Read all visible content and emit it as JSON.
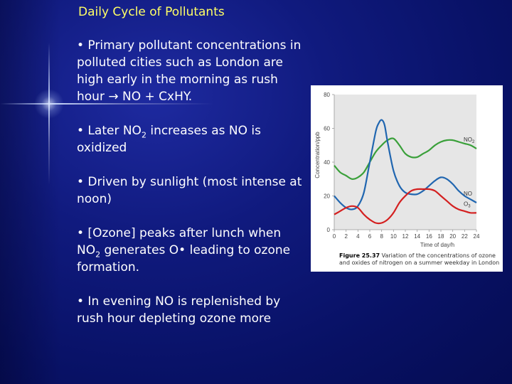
{
  "slide": {
    "title": "Daily Cycle of Pollutants",
    "bullets": [
      {
        "text": "• Primary pollutant concentrations in polluted cities such as London are high early in the morning as rush hour → NO + CxHY.",
        "sub": "",
        "after": ""
      },
      {
        "text": "• Later NO",
        "sub": "2",
        "after": " increases as NO is oxidized"
      },
      {
        "text": "• Driven by sunlight (most intense at noon)",
        "sub": "",
        "after": ""
      },
      {
        "text": "• [Ozone] peaks after lunch when NO",
        "sub": "2",
        "after": " generates O• leading to ozone formation."
      },
      {
        "text": "• In evening NO is replenished by rush hour depleting ozone more",
        "sub": "",
        "after": ""
      }
    ]
  },
  "figure": {
    "caption_label": "Figure 25.37",
    "caption_text": " Variation of the concentrations of ozone and oxides of nitrogen on a summer weekday in London"
  },
  "chart_data": {
    "type": "line",
    "xlabel": "Time of day/h",
    "ylabel": "Concentration/ppb",
    "xlim": [
      0,
      24
    ],
    "ylim": [
      0,
      80
    ],
    "x_ticks": [
      "0",
      "2",
      "4",
      "6",
      "8",
      "10",
      "12",
      "14",
      "16",
      "18",
      "20",
      "22",
      "24"
    ],
    "y_ticks": [
      "0",
      "20",
      "40",
      "60",
      "80"
    ],
    "grid": false,
    "shaded_background": true,
    "series": [
      {
        "name": "NO2",
        "color": "#3aa03a",
        "x": [
          0,
          1,
          2,
          3,
          4,
          5,
          6,
          7,
          8,
          9,
          10,
          11,
          12,
          13,
          14,
          15,
          16,
          17,
          18,
          19,
          20,
          21,
          22,
          23,
          24
        ],
        "y": [
          38,
          34,
          32,
          30,
          31,
          34,
          40,
          46,
          50,
          53,
          54,
          50,
          45,
          43,
          43,
          45,
          47,
          50,
          52,
          53,
          53,
          52,
          51,
          50,
          48
        ]
      },
      {
        "name": "NO",
        "color": "#2066b0",
        "x": [
          0,
          1,
          2,
          3,
          4,
          5,
          6,
          7,
          7.5,
          8,
          8.5,
          9,
          10,
          11,
          12,
          13,
          14,
          15,
          16,
          17,
          18,
          19,
          20,
          21,
          22,
          23,
          24
        ],
        "y": [
          20,
          16,
          13,
          12,
          14,
          22,
          40,
          58,
          63,
          65,
          62,
          52,
          35,
          26,
          22,
          21,
          21,
          23,
          26,
          29,
          31,
          30,
          27,
          23,
          20,
          18,
          16
        ]
      },
      {
        "name": "O3",
        "color": "#d42020",
        "x": [
          0,
          1,
          2,
          3,
          4,
          5,
          6,
          7,
          8,
          9,
          10,
          11,
          12,
          13,
          14,
          15,
          16,
          17,
          18,
          19,
          20,
          21,
          22,
          23,
          24
        ],
        "y": [
          9,
          11,
          13,
          14,
          13,
          9,
          6,
          4,
          4,
          6,
          10,
          16,
          20,
          23,
          24,
          24,
          24,
          23,
          20,
          17,
          14,
          12,
          11,
          10,
          10
        ]
      }
    ]
  }
}
